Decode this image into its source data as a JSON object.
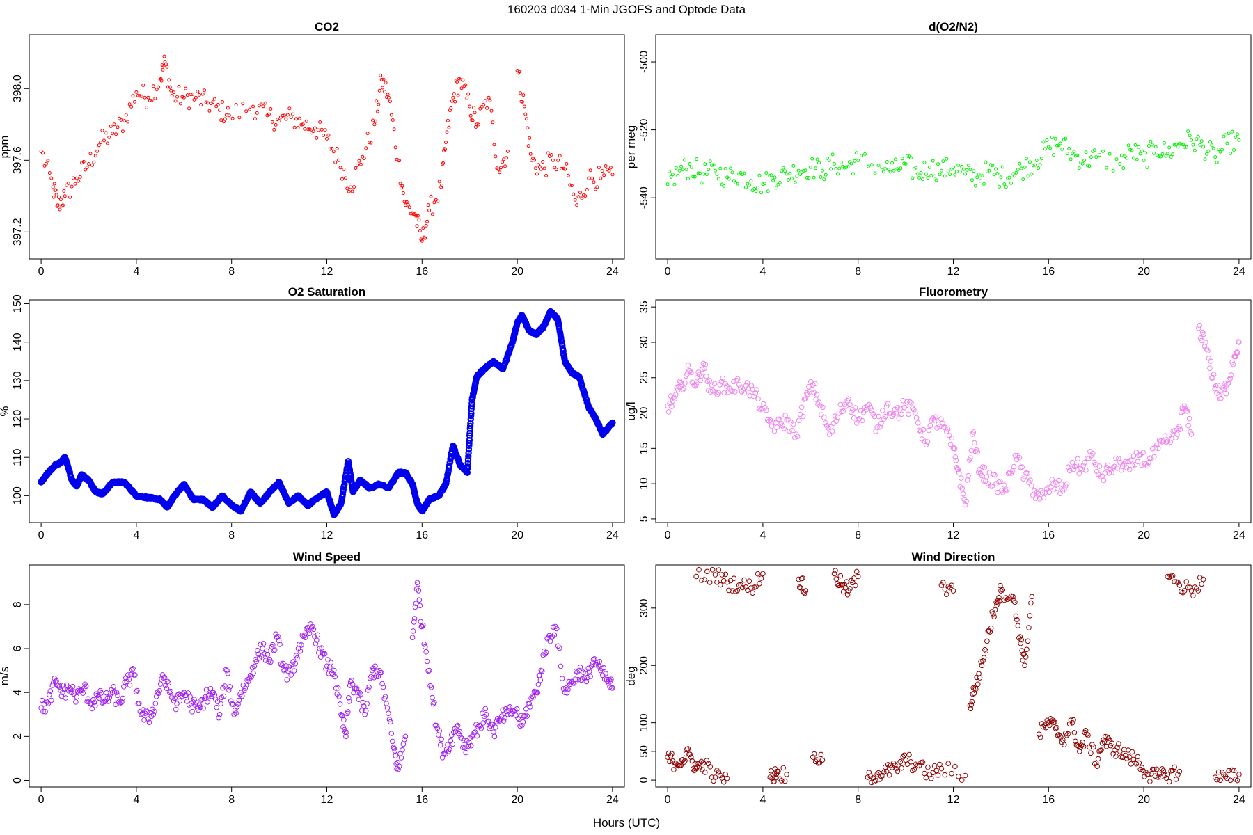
{
  "figure": {
    "title": "160203   d034   1-Min  JGOFS and Optode Data",
    "xlabel": "Hours (UTC)"
  },
  "chart_data": [
    {
      "type": "scatter",
      "title": "CO2",
      "ylabel": "ppm",
      "color": "#ff0000",
      "marker": "small-circle",
      "xlim": [
        -0.5,
        24.5
      ],
      "ylim": [
        397.05,
        398.3
      ],
      "xticks": [
        0,
        4,
        8,
        12,
        16,
        20,
        24
      ],
      "yticks": [
        397.2,
        397.6,
        398.0
      ],
      "yticklabels": [
        "397.2",
        "397.6",
        "398.0"
      ],
      "series": [
        {
          "x": [
            0,
            0.5,
            0.7,
            1,
            1.5,
            2,
            2.5,
            3,
            3.5,
            4,
            4.5,
            5,
            5.2,
            5.5,
            6,
            6.5,
            7,
            7.5,
            7.9,
            8.9,
            9.5,
            10,
            10.5,
            11,
            11.5,
            12,
            12.5,
            13,
            13.5,
            14,
            14.3,
            14.6,
            15,
            15.3,
            15.7,
            16,
            16.3,
            16.8,
            17,
            17.3,
            17.6,
            18,
            18.3,
            18.8,
            19.2,
            19.6,
            20,
            20.3,
            20.6,
            21,
            21.5,
            22,
            22.5,
            23,
            23.5,
            24
          ],
          "y": [
            397.65,
            397.45,
            397.35,
            397.4,
            397.5,
            397.58,
            397.7,
            397.75,
            397.82,
            397.98,
            397.95,
            398.05,
            398.15,
            397.96,
            397.95,
            397.95,
            397.92,
            397.88,
            397.85,
            397.9,
            397.85,
            397.82,
            397.84,
            397.8,
            397.78,
            397.72,
            397.6,
            397.45,
            397.62,
            397.8,
            398.05,
            397.95,
            397.6,
            397.35,
            397.3,
            397.15,
            397.32,
            397.45,
            397.7,
            397.95,
            398.05,
            397.9,
            397.8,
            397.95,
            397.55,
            397.65,
            398.1,
            397.9,
            397.6,
            397.55,
            397.6,
            397.55,
            397.35,
            397.5,
            397.5,
            397.52
          ]
        }
      ]
    },
    {
      "type": "scatter",
      "title": "d(O2/N2)",
      "ylabel": "per meg",
      "color": "#00ee00",
      "marker": "small-circle",
      "xlim": [
        -0.5,
        24.5
      ],
      "ylim": [
        -558,
        -492
      ],
      "xticks": [
        0,
        4,
        8,
        12,
        16,
        20,
        24
      ],
      "yticks": [
        -540,
        -520,
        -500
      ],
      "yticklabels": [
        "-540",
        "-520",
        "-500"
      ],
      "series": [
        {
          "x": [
            0,
            0.5,
            1,
            1.5,
            2,
            2.5,
            3,
            3.5,
            4,
            4.5,
            5,
            5.5,
            6,
            6.5,
            7,
            7.5,
            8,
            9,
            9.5,
            10,
            10.5,
            11,
            11.5,
            12,
            12.5,
            13,
            13.5,
            14,
            14.5,
            15,
            15.5,
            16,
            16.5,
            17,
            17.5,
            18,
            19,
            19.5,
            20,
            20.5,
            21,
            21.5,
            22,
            22.5,
            23,
            23.5,
            24
          ],
          "y": [
            -536,
            -532,
            -531,
            -533,
            -532,
            -534,
            -533,
            -535,
            -536,
            -534,
            -533,
            -532,
            -531,
            -532,
            -530,
            -531,
            -529,
            -531,
            -532,
            -530,
            -533,
            -531,
            -532,
            -531,
            -533,
            -534,
            -532,
            -534,
            -533,
            -531,
            -529,
            -525,
            -524,
            -527,
            -529,
            -528,
            -530,
            -526,
            -529,
            -525,
            -527,
            -524,
            -523,
            -525,
            -528,
            -524,
            -523
          ]
        }
      ]
    },
    {
      "type": "scatter",
      "title": "O2 Saturation",
      "ylabel": "%",
      "color": "#0000ee",
      "marker": "dense-circle",
      "xlim": [
        -0.5,
        24.5
      ],
      "ylim": [
        93,
        151
      ],
      "xticks": [
        0,
        4,
        8,
        12,
        16,
        20,
        24
      ],
      "yticks": [
        100,
        110,
        120,
        130,
        140,
        150
      ],
      "yticklabels": [
        "100",
        "110",
        "120",
        "130",
        "140",
        "150"
      ],
      "series": [
        {
          "x": [
            0,
            0.3,
            0.6,
            0.8,
            1,
            1.3,
            1.5,
            1.7,
            2,
            2.3,
            2.6,
            3,
            3.5,
            4,
            4.5,
            5,
            5.3,
            5.6,
            6,
            6.4,
            6.8,
            7.2,
            7.6,
            8,
            8.4,
            8.8,
            9.2,
            9.6,
            10,
            10.4,
            10.8,
            11.2,
            11.6,
            12,
            12.3,
            12.6,
            12.9,
            13.1,
            13.4,
            13.8,
            14.2,
            14.6,
            15,
            15.3,
            15.6,
            15.8,
            16,
            16.3,
            16.7,
            17,
            17.3,
            17.6,
            17.9,
            18.1,
            18.3,
            18.6,
            19,
            19.4,
            19.8,
            20,
            20.2,
            20.5,
            20.8,
            21.1,
            21.4,
            21.7,
            22,
            22.3,
            22.6,
            23,
            23.3,
            23.6,
            24
          ],
          "y": [
            103.5,
            106,
            108,
            108.5,
            110,
            104,
            102.5,
            105.5,
            104,
            101,
            100.5,
            103.5,
            103.5,
            100,
            99.5,
            99,
            97,
            100,
            103,
            99,
            99,
            97,
            100,
            97.5,
            96,
            101,
            98,
            101,
            103.5,
            98,
            100,
            97.5,
            99.5,
            101,
            95,
            98,
            109,
            101,
            104,
            102,
            103,
            102,
            106,
            106,
            103,
            98,
            96,
            99,
            100,
            103,
            113,
            108,
            106,
            125,
            131,
            133,
            135,
            133,
            140,
            145,
            147,
            143,
            142,
            144,
            148,
            146,
            135,
            132,
            131,
            123,
            120,
            116,
            119
          ]
        }
      ]
    },
    {
      "type": "scatter",
      "title": "Fluorometry",
      "ylabel": "ug/l",
      "color": "#ee82ee",
      "marker": "circle",
      "xlim": [
        -0.5,
        24.5
      ],
      "ylim": [
        4.5,
        36
      ],
      "xticks": [
        0,
        4,
        8,
        12,
        16,
        20,
        24
      ],
      "yticks": [
        5,
        10,
        15,
        20,
        25,
        30,
        35
      ],
      "yticklabels": [
        "5",
        "10",
        "15",
        "20",
        "25",
        "30",
        "35"
      ],
      "series": [
        {
          "x": [
            0,
            0.3,
            0.6,
            0.9,
            1.2,
            1.5,
            1.8,
            2.2,
            2.6,
            3,
            3.4,
            3.8,
            4.2,
            4.6,
            5,
            5.4,
            5.8,
            6.1,
            6.4,
            6.8,
            7.2,
            7.6,
            8,
            8.4,
            8.8,
            9.2,
            9.6,
            10,
            10.4,
            10.8,
            11.2,
            11.6,
            12,
            12.2,
            12.5,
            12.8,
            13.1,
            13.4,
            13.8,
            14.2,
            14.6,
            15,
            15.4,
            15.8,
            16.2,
            16.6,
            17,
            17.4,
            17.8,
            18.2,
            18.6,
            19,
            19.4,
            19.8,
            20.2,
            20.6,
            21,
            21.4,
            21.7,
            22,
            22.3,
            22.6,
            22.9,
            23.2,
            23.5,
            23.8,
            24
          ],
          "y": [
            21,
            22,
            24,
            26,
            24,
            27,
            23,
            24,
            23.5,
            24,
            23.5,
            22,
            19,
            18,
            19,
            17,
            22,
            24,
            21,
            17,
            20,
            22,
            19,
            21,
            18,
            21,
            20,
            21,
            20,
            16,
            19,
            18,
            15,
            12,
            7,
            17,
            12,
            11,
            10,
            9,
            14,
            11,
            9,
            8,
            10,
            9,
            13,
            12,
            14,
            11,
            12,
            13,
            12,
            14,
            13,
            15,
            16,
            17,
            21,
            17,
            32,
            30,
            25,
            22,
            24,
            28,
            30
          ]
        }
      ]
    },
    {
      "type": "scatter",
      "title": "Wind Speed",
      "ylabel": "m/s",
      "color": "#a020f0",
      "marker": "circle",
      "xlim": [
        -0.5,
        24.5
      ],
      "ylim": [
        -0.3,
        9.8
      ],
      "xticks": [
        0,
        4,
        8,
        12,
        16,
        20,
        24
      ],
      "yticks": [
        0,
        2,
        4,
        6,
        8
      ],
      "yticklabels": [
        "0",
        "2",
        "4",
        "6",
        "8"
      ],
      "series": [
        {
          "x": [
            0,
            0.3,
            0.6,
            0.9,
            1.2,
            1.5,
            1.8,
            2.1,
            2.4,
            2.7,
            3,
            3.3,
            3.6,
            3.9,
            4.2,
            4.5,
            4.8,
            5.1,
            5.4,
            5.7,
            6,
            6.3,
            6.6,
            6.9,
            7.2,
            7.5,
            7.8,
            8.1,
            8.4,
            8.7,
            9,
            9.3,
            9.6,
            9.9,
            10.2,
            10.5,
            10.8,
            11.1,
            11.4,
            11.7,
            12,
            12.3,
            12.6,
            12.8,
            13,
            13.3,
            13.6,
            13.9,
            14.2,
            14.5,
            14.8,
            15,
            15.3,
            15.6,
            15.8,
            16,
            16.3,
            16.6,
            16.9,
            17.2,
            17.5,
            17.8,
            18.1,
            18.4,
            18.7,
            19,
            19.3,
            19.6,
            19.9,
            20.2,
            20.5,
            20.8,
            21,
            21.3,
            21.6,
            22,
            22.3,
            22.6,
            22.9,
            23.2,
            23.5,
            23.8,
            24
          ],
          "y": [
            3.3,
            3.5,
            4.5,
            4,
            4.2,
            3.8,
            4.2,
            3.5,
            3.8,
            3.6,
            4,
            3.5,
            4.5,
            4.8,
            3,
            2.8,
            3.5,
            4.8,
            4,
            3.5,
            4,
            3.5,
            3.2,
            3.8,
            4,
            3,
            5,
            3,
            4,
            4.5,
            5.5,
            6,
            5.5,
            6.5,
            5,
            4.8,
            6,
            6.5,
            7,
            6,
            5.2,
            5,
            3,
            2,
            4.5,
            4,
            3,
            5,
            5,
            3.5,
            1.5,
            0.5,
            2,
            6.5,
            9,
            7,
            5,
            2.5,
            1.2,
            1.8,
            2.5,
            1.5,
            2,
            2.5,
            3,
            2.2,
            2.8,
            3,
            3.2,
            2.5,
            3.5,
            4,
            5,
            6.5,
            7,
            4,
            4.5,
            5,
            4.5,
            5.5,
            5,
            4.5,
            4.2
          ]
        }
      ]
    },
    {
      "type": "scatter",
      "title": "Wind Direction",
      "ylabel": "deg",
      "color": "#8b0000",
      "marker": "circle",
      "xlim": [
        -0.5,
        24.5
      ],
      "ylim": [
        -12,
        375
      ],
      "xticks": [
        0,
        4,
        8,
        12,
        16,
        20,
        24
      ],
      "yticks": [
        0,
        50,
        100,
        200,
        300
      ],
      "yticklabels": [
        "0",
        "50",
        "100",
        "200",
        "300"
      ],
      "series": [
        {
          "x": [
            0,
            0.3,
            0.6,
            0.9,
            1.2,
            1.5,
            2,
            2.5,
            1.2,
            2,
            2.5,
            3,
            3.5,
            4,
            4.5,
            5,
            4.3,
            4.6,
            5.5,
            5.8,
            6.1,
            6.5,
            7,
            7.3,
            7.6,
            8,
            8.4,
            8.8,
            9.2,
            9.6,
            10,
            10.5,
            11,
            11.5,
            12.5,
            11.5,
            12,
            12.7,
            12.9,
            13.2,
            13.5,
            13.8,
            14,
            14.5,
            14.8,
            15,
            15.3,
            15.6,
            16,
            16.3,
            16.6,
            17,
            17.3,
            17.6,
            18,
            18.3,
            18.6,
            19,
            19.4,
            19.8,
            20.2,
            20.6,
            21,
            21.5,
            21,
            21.5,
            22,
            22.5,
            23,
            23.5,
            24
          ],
          "y": [
            40,
            30,
            35,
            45,
            20,
            30,
            5,
            3,
            355,
            358,
            345,
            340,
            335,
            360,
            12,
            10,
            5,
            15,
            350,
            330,
            40,
            35,
            360,
            340,
            330,
            355,
            5,
            10,
            15,
            20,
            35,
            25,
            10,
            20,
            8,
            340,
            330,
            130,
            160,
            200,
            260,
            310,
            330,
            320,
            250,
            200,
            320,
            80,
            100,
            90,
            70,
            100,
            50,
            80,
            30,
            70,
            60,
            50,
            40,
            30,
            10,
            5,
            10,
            15,
            355,
            340,
            330,
            350,
            5,
            3,
            10
          ]
        }
      ]
    }
  ]
}
